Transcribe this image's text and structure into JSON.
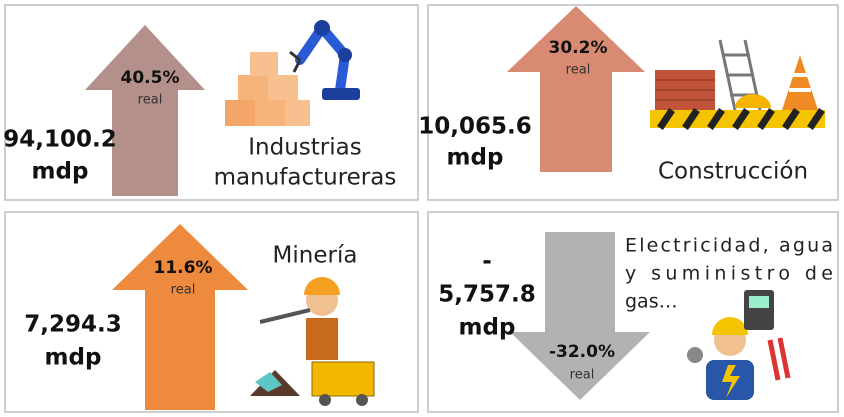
{
  "panels": [
    {
      "amount_lines": [
        "94,100.2"
      ],
      "unit": "mdp",
      "change": "40.5%",
      "change_note": "real",
      "name_lines": [
        "Industrias",
        "manufactureras"
      ]
    },
    {
      "amount_lines": [
        "10,065.6"
      ],
      "unit": "mdp",
      "change": "30.2%",
      "change_note": "real",
      "name_lines": [
        "Construcción"
      ]
    },
    {
      "amount_lines": [
        "7,294.3"
      ],
      "unit": "mdp",
      "change": "11.6%",
      "change_note": "real",
      "name_lines": [
        "Minería"
      ]
    },
    {
      "amount_lines": [
        "-",
        "5,757.8"
      ],
      "unit": "mdp",
      "change": "-32.0%",
      "change_note": "real",
      "name_lines": [
        "Electricidad, agua",
        "y suministro de",
        "gas…"
      ]
    }
  ]
}
